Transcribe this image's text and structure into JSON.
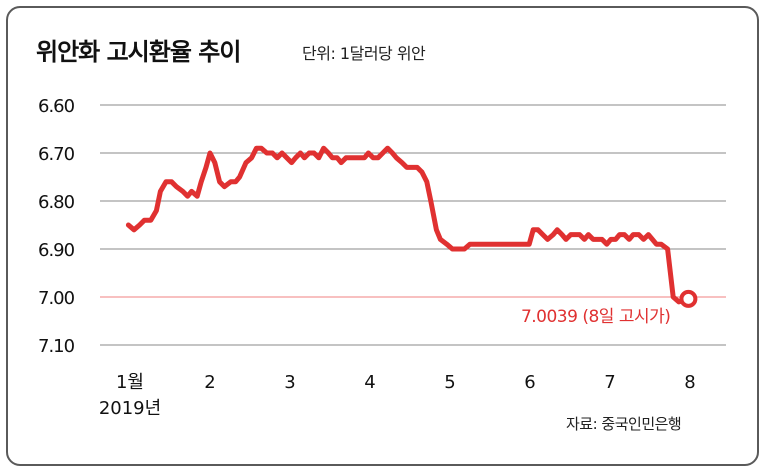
{
  "title": "위안화 고시환율 추이",
  "unit_label": "단위: 1달러당 위안",
  "source": "자료: 중국인민은행",
  "colors": {
    "line": "#e03131",
    "grid": "#8a8a8a",
    "highlight_grid": "#f08080"
  },
  "chart_data": {
    "type": "line",
    "title": "위안화 고시환율 추이",
    "y_inverted": true,
    "ylim": [
      6.6,
      7.1
    ],
    "yticks": [
      "6.60",
      "6.70",
      "6.80",
      "6.90",
      "7.00",
      "7.10"
    ],
    "highlight_y": 7.0,
    "x_labels": [
      {
        "label": "1월",
        "sub": "2019년",
        "x": 1
      },
      {
        "label": "2",
        "x": 2
      },
      {
        "label": "3",
        "x": 3
      },
      {
        "label": "4",
        "x": 4
      },
      {
        "label": "5",
        "x": 5
      },
      {
        "label": "6",
        "x": 6
      },
      {
        "label": "7",
        "x": 7
      },
      {
        "label": "8",
        "x": 8
      }
    ],
    "xlim": [
      1,
      8
    ],
    "series": [
      {
        "x": [
          0.98,
          1.05,
          1.12,
          1.18,
          1.26,
          1.33,
          1.38,
          1.45,
          1.52,
          1.58,
          1.66,
          1.72,
          1.77,
          1.84,
          1.89,
          1.95,
          2.0,
          2.06,
          2.12,
          2.18,
          2.26,
          2.32,
          2.37,
          2.45,
          2.52,
          2.58,
          2.64,
          2.71,
          2.78,
          2.84,
          2.9,
          2.96,
          3.02,
          3.07,
          3.13,
          3.18,
          3.24,
          3.3,
          3.36,
          3.42,
          3.48,
          3.53,
          3.59,
          3.64,
          3.7,
          3.75,
          3.81,
          3.87,
          3.93,
          3.98,
          4.04,
          4.1,
          4.16,
          4.22,
          4.28,
          4.33,
          4.4,
          4.46,
          4.52,
          4.59,
          4.65,
          4.71,
          4.76,
          4.83,
          4.88,
          4.96,
          5.03,
          5.1,
          5.18,
          5.25,
          5.33,
          5.41,
          5.49,
          5.57,
          5.65,
          5.73,
          5.8,
          5.87,
          5.93,
          5.99,
          6.04,
          6.1,
          6.16,
          6.22,
          6.29,
          6.34,
          6.4,
          6.45,
          6.51,
          6.57,
          6.62,
          6.68,
          6.73,
          6.79,
          6.84,
          6.9,
          6.96,
          7.01,
          7.07,
          7.12,
          7.18,
          7.24,
          7.29,
          7.36,
          7.42,
          7.48,
          7.53,
          7.58,
          7.64,
          7.72,
          7.79,
          7.86,
          7.98
        ],
        "y": [
          6.85,
          6.86,
          6.85,
          6.84,
          6.84,
          6.82,
          6.78,
          6.76,
          6.76,
          6.77,
          6.78,
          6.79,
          6.78,
          6.79,
          6.76,
          6.73,
          6.7,
          6.72,
          6.76,
          6.77,
          6.76,
          6.76,
          6.75,
          6.72,
          6.71,
          6.69,
          6.69,
          6.7,
          6.7,
          6.71,
          6.7,
          6.71,
          6.72,
          6.71,
          6.7,
          6.71,
          6.7,
          6.7,
          6.71,
          6.69,
          6.7,
          6.71,
          6.71,
          6.72,
          6.71,
          6.71,
          6.71,
          6.71,
          6.71,
          6.7,
          6.71,
          6.71,
          6.7,
          6.69,
          6.7,
          6.71,
          6.72,
          6.73,
          6.73,
          6.73,
          6.74,
          6.76,
          6.8,
          6.86,
          6.88,
          6.89,
          6.9,
          6.9,
          6.9,
          6.89,
          6.89,
          6.89,
          6.89,
          6.89,
          6.89,
          6.89,
          6.89,
          6.89,
          6.89,
          6.89,
          6.86,
          6.86,
          6.87,
          6.88,
          6.87,
          6.86,
          6.87,
          6.88,
          6.87,
          6.87,
          6.87,
          6.88,
          6.87,
          6.88,
          6.88,
          6.88,
          6.89,
          6.88,
          6.88,
          6.87,
          6.87,
          6.88,
          6.87,
          6.87,
          6.88,
          6.87,
          6.88,
          6.89,
          6.89,
          6.9,
          7.0,
          7.01,
          7.0039
        ]
      }
    ],
    "marker": {
      "x": 7.98,
      "y": 7.0039
    },
    "annotation": "7.0039 (8일 고시가)"
  }
}
